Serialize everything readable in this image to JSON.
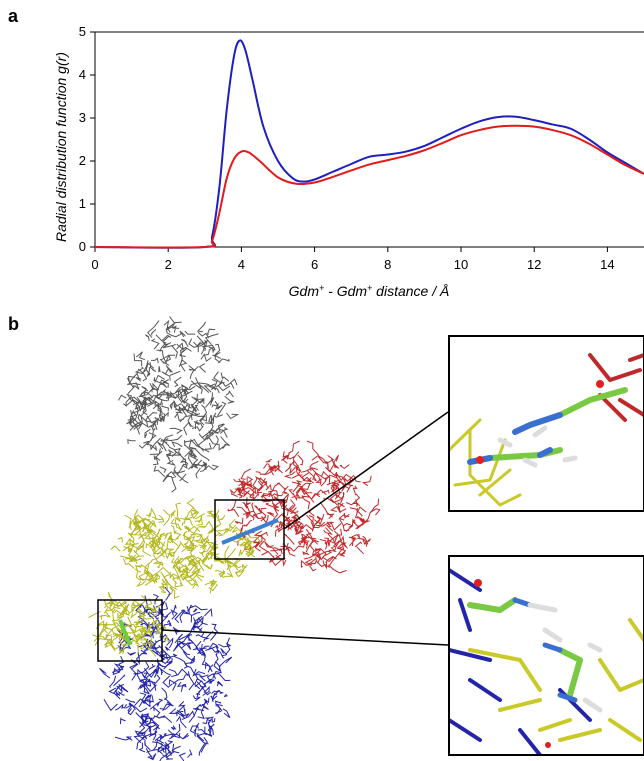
{
  "panels": {
    "a_label": "a",
    "b_label": "b"
  },
  "chart_data": {
    "type": "line",
    "xlabel_parts": [
      "Gdm",
      "+",
      " - Gdm",
      "+",
      " distance / Å"
    ],
    "ylabel": "Radial distribution function g(r)",
    "xlim": [
      0,
      15
    ],
    "ylim": [
      0,
      5
    ],
    "x_ticks": [
      0,
      2,
      4,
      6,
      8,
      10,
      12,
      14
    ],
    "y_ticks": [
      0,
      1,
      2,
      3,
      4,
      5
    ],
    "grid": false,
    "legend": "none",
    "series": [
      {
        "color": "#1f1fbf",
        "x": [
          0,
          3.0,
          3.2,
          3.4,
          3.6,
          3.8,
          3.95,
          4.1,
          4.3,
          4.6,
          5.0,
          5.4,
          5.7,
          6.0,
          6.5,
          7.0,
          7.5,
          8.0,
          8.5,
          9.0,
          9.5,
          10.0,
          10.5,
          11.0,
          11.5,
          12.0,
          12.5,
          13.0,
          13.5,
          14.0,
          14.5,
          15.0
        ],
        "y": [
          0,
          0.0,
          0.25,
          1.4,
          3.2,
          4.45,
          4.8,
          4.6,
          3.9,
          2.8,
          2.0,
          1.6,
          1.52,
          1.57,
          1.75,
          1.93,
          2.1,
          2.15,
          2.22,
          2.35,
          2.55,
          2.75,
          2.92,
          3.02,
          3.03,
          2.95,
          2.85,
          2.75,
          2.5,
          2.2,
          1.95,
          1.7
        ]
      },
      {
        "color": "#e31a1a",
        "x": [
          0,
          3.0,
          3.2,
          3.4,
          3.6,
          3.8,
          4.0,
          4.2,
          4.5,
          5.0,
          5.5,
          6.0,
          6.5,
          7.0,
          7.5,
          8.0,
          8.5,
          9.0,
          9.5,
          10.0,
          10.5,
          11.0,
          11.5,
          12.0,
          12.5,
          13.0,
          13.5,
          14.0,
          14.5,
          15.0
        ],
        "y": [
          0,
          0.0,
          0.15,
          0.8,
          1.6,
          2.05,
          2.22,
          2.2,
          2.0,
          1.62,
          1.47,
          1.5,
          1.63,
          1.78,
          1.92,
          2.02,
          2.12,
          2.25,
          2.42,
          2.6,
          2.72,
          2.8,
          2.82,
          2.8,
          2.72,
          2.6,
          2.4,
          2.15,
          1.9,
          1.7
        ]
      }
    ]
  },
  "figure_b": {
    "zoom_boxes": [
      "upper",
      "lower"
    ]
  }
}
